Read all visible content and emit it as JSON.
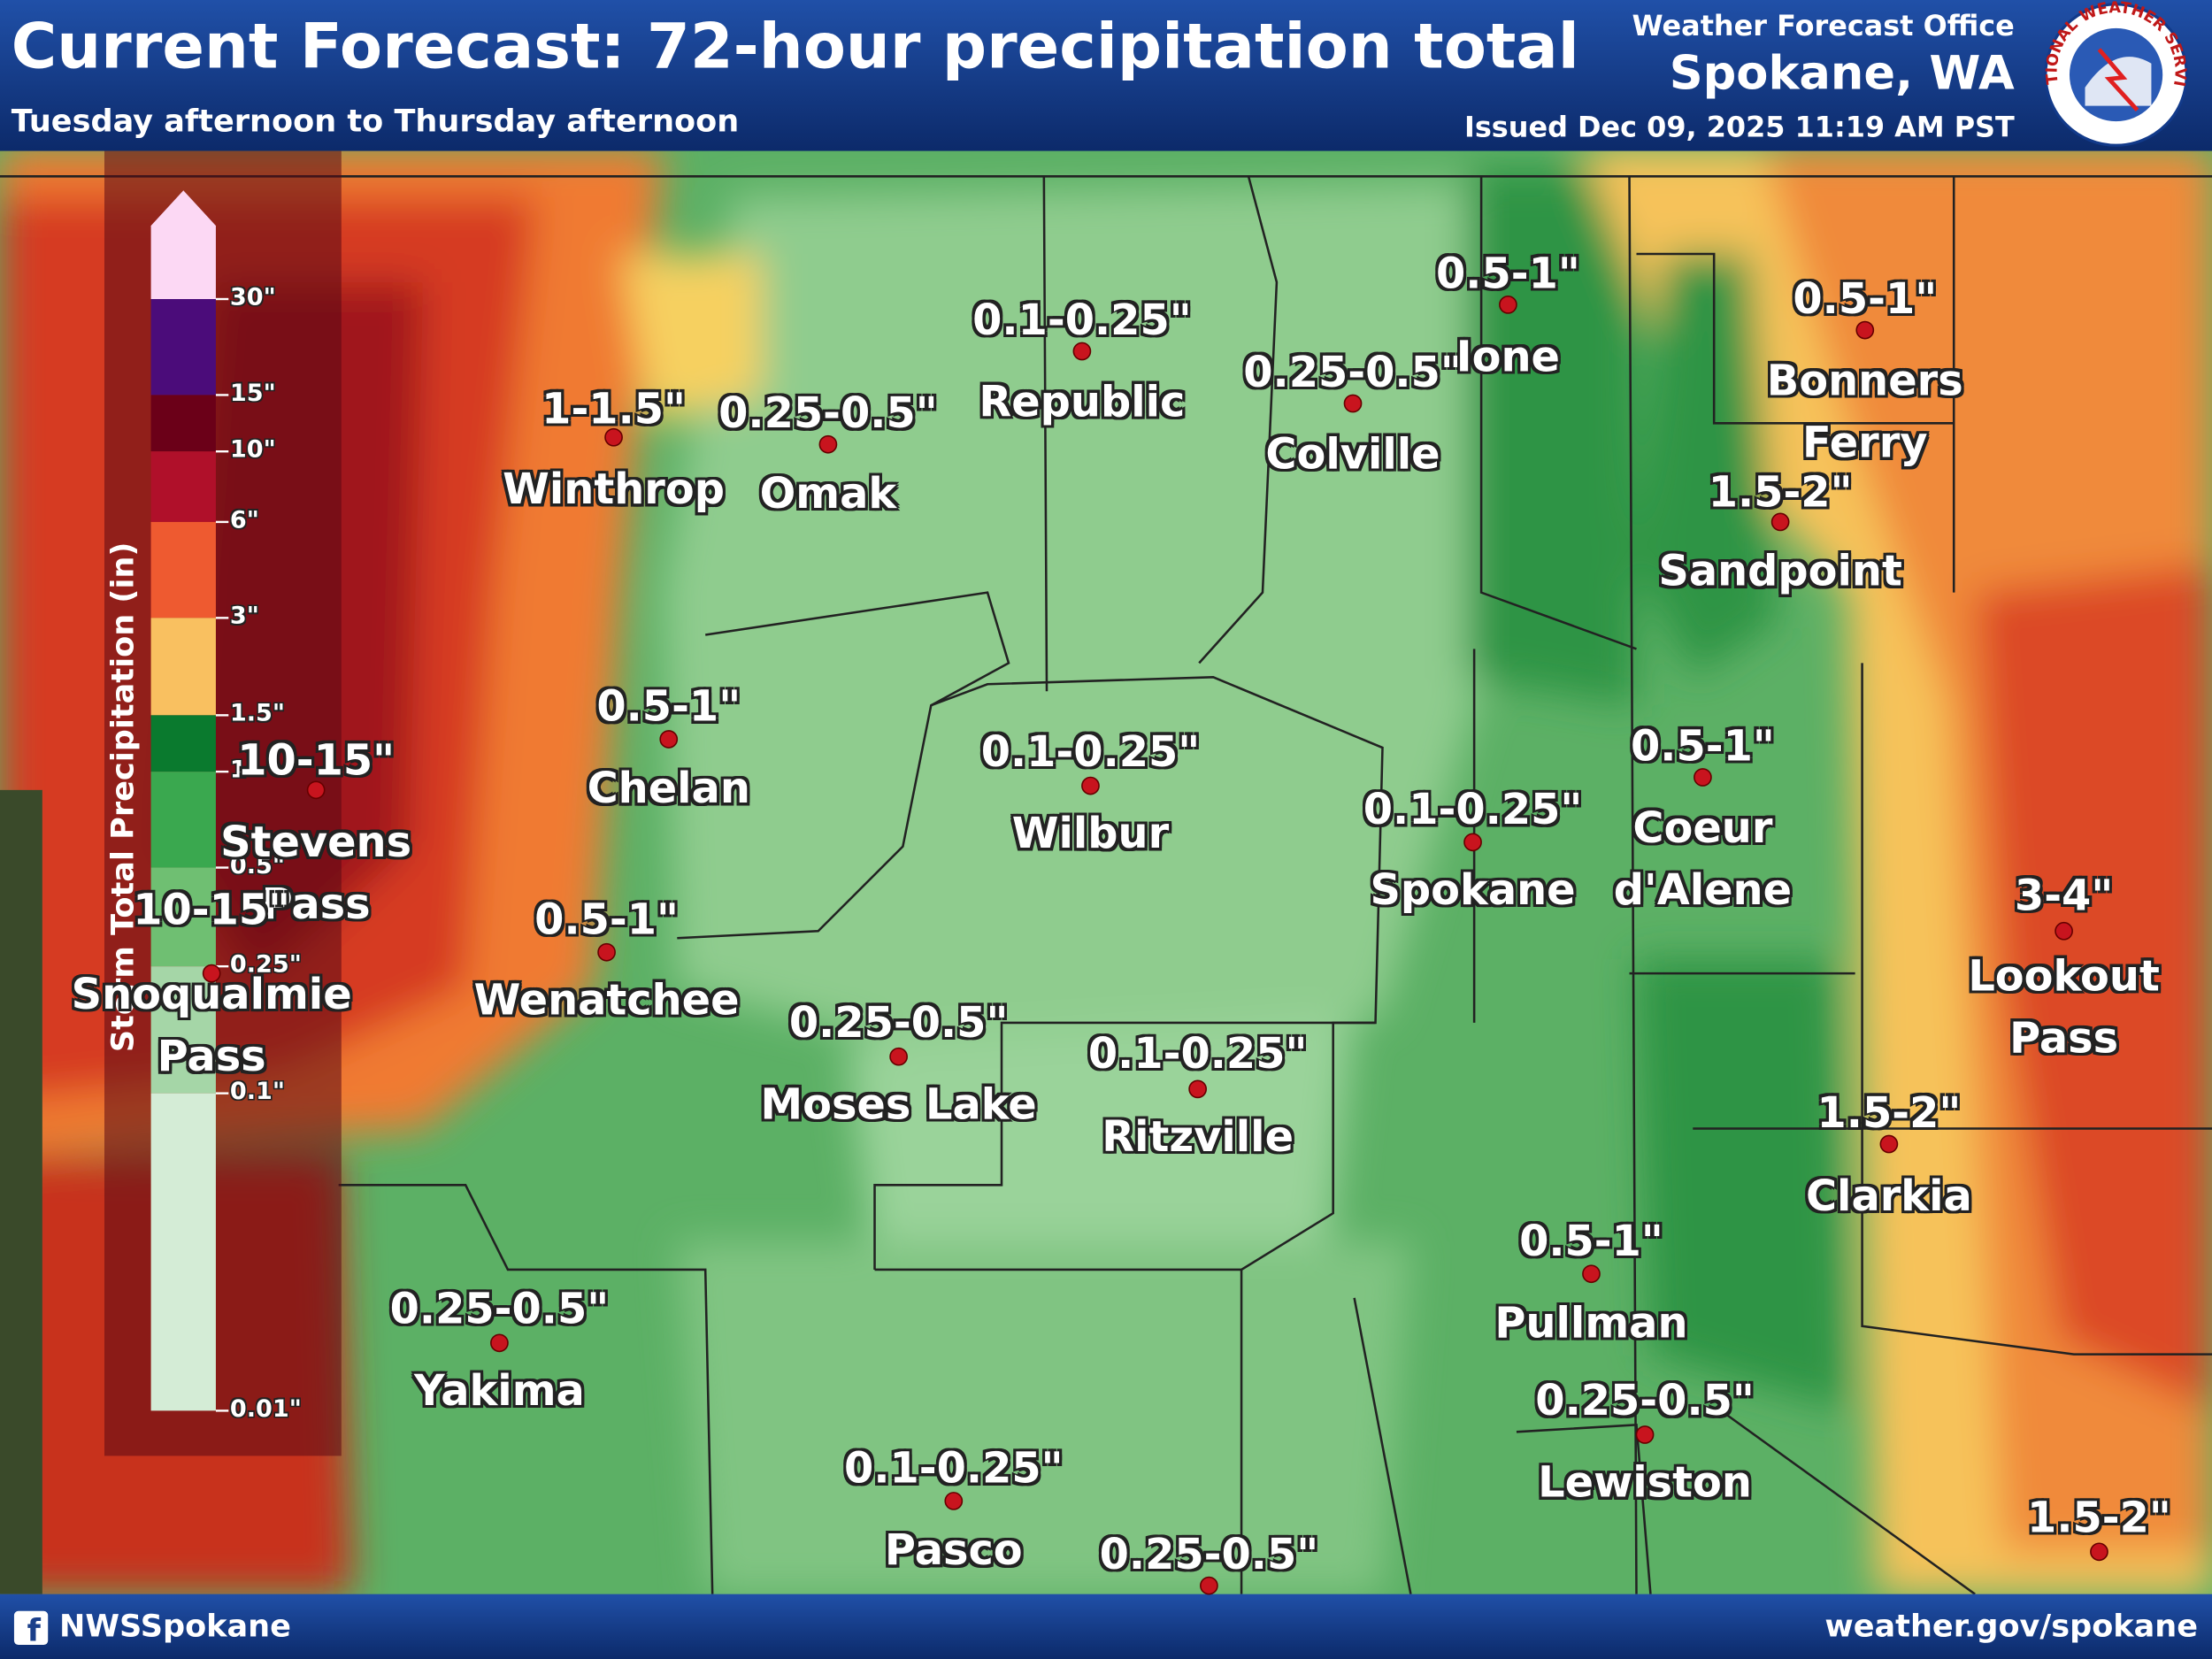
{
  "header": {
    "title": "Current Forecast: 72-hour precipitation total",
    "subtitle": "Tuesday afternoon to Thursday afternoon",
    "office": "Weather Forecast Office",
    "location": "Spokane, WA",
    "issued": "Issued Dec 09, 2025 11:19 AM PST",
    "logo_text": "NATIONAL WEATHER SERVICE"
  },
  "legend": {
    "title": "Storm Total Precipitation (in)",
    "labels": [
      "30\"",
      "15\"",
      "10\"",
      "6\"",
      "3\"",
      "1.5\"",
      "1\"",
      "0.5\"",
      "0.25\"",
      "0.1\"",
      "0.01\""
    ]
  },
  "cities": [
    {
      "name": "Winthrop",
      "amount": "1-1.5\""
    },
    {
      "name": "Omak",
      "amount": "0.25-0.5\""
    },
    {
      "name": "Republic",
      "amount": "0.1-0.25\""
    },
    {
      "name": "Colville",
      "amount": "0.25-0.5\""
    },
    {
      "name": "Ione",
      "amount": "0.5-1\""
    },
    {
      "name": "Bonners Ferry",
      "amount": "0.5-1\""
    },
    {
      "name": "Sandpoint",
      "amount": "1.5-2\""
    },
    {
      "name": "Chelan",
      "amount": "0.5-1\""
    },
    {
      "name": "Stevens Pass",
      "amount": "10-15\""
    },
    {
      "name": "Snoqualmie Pass",
      "amount": "10-15\""
    },
    {
      "name": "Wenatchee",
      "amount": "0.5-1\""
    },
    {
      "name": "Wilbur",
      "amount": "0.1-0.25\""
    },
    {
      "name": "Spokane",
      "amount": "0.1-0.25\""
    },
    {
      "name": "Coeur d'Alene",
      "amount": "0.5-1\""
    },
    {
      "name": "Lookout Pass",
      "amount": "3-4\""
    },
    {
      "name": "Moses Lake",
      "amount": "0.25-0.5\""
    },
    {
      "name": "Ritzville",
      "amount": "0.1-0.25\""
    },
    {
      "name": "Clarkia",
      "amount": "1.5-2\""
    },
    {
      "name": "Pullman",
      "amount": "0.5-1\""
    },
    {
      "name": "Yakima",
      "amount": "0.25-0.5\""
    },
    {
      "name": "Lewiston",
      "amount": "0.25-0.5\""
    },
    {
      "name": "Pasco",
      "amount": "0.1-0.25\""
    },
    {
      "amount": "0.25-0.5\""
    },
    {
      "amount": "1.5-2\""
    }
  ],
  "footer": {
    "social": "NWSSpokane",
    "url": "weather.gov/spokane"
  }
}
